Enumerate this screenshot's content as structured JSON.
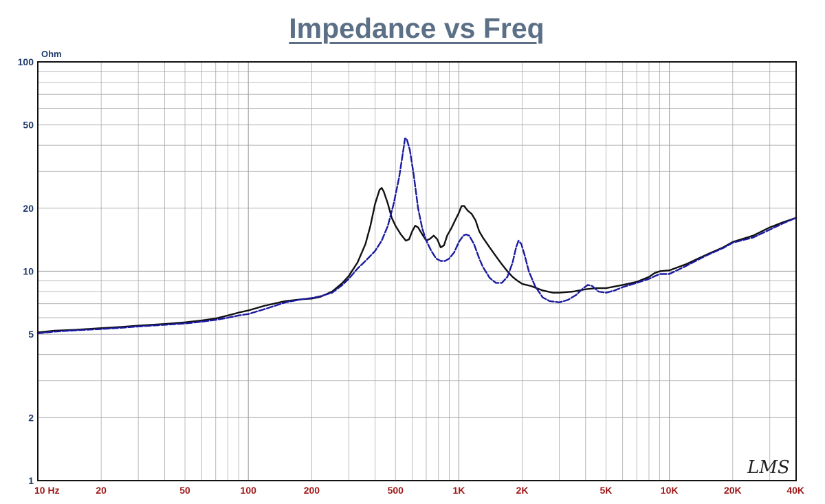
{
  "chart_data": {
    "type": "line",
    "title": "Impedance vs Freq",
    "ylabel": "Ohm",
    "xlabel": "",
    "x_scale": "log",
    "y_scale": "log",
    "xlim": [
      10,
      40000
    ],
    "ylim": [
      1,
      100
    ],
    "grid": true,
    "legend": "none",
    "x_ticks": [
      {
        "value": 10,
        "label": "10  Hz"
      },
      {
        "value": 20,
        "label": "20"
      },
      {
        "value": 50,
        "label": "50"
      },
      {
        "value": 100,
        "label": "100"
      },
      {
        "value": 200,
        "label": "200"
      },
      {
        "value": 500,
        "label": "500"
      },
      {
        "value": 1000,
        "label": "1K"
      },
      {
        "value": 2000,
        "label": "2K"
      },
      {
        "value": 5000,
        "label": "5K"
      },
      {
        "value": 10000,
        "label": "10K"
      },
      {
        "value": 20000,
        "label": "20K"
      },
      {
        "value": 40000,
        "label": "40K"
      }
    ],
    "y_ticks": [
      {
        "value": 1,
        "label": "1"
      },
      {
        "value": 2,
        "label": "2"
      },
      {
        "value": 5,
        "label": "5"
      },
      {
        "value": 10,
        "label": "10"
      },
      {
        "value": 20,
        "label": "20"
      },
      {
        "value": 50,
        "label": "50"
      },
      {
        "value": 100,
        "label": "100"
      }
    ],
    "series": [
      {
        "color": "#111111",
        "style": "solid",
        "points": [
          [
            10,
            5.1
          ],
          [
            12,
            5.2
          ],
          [
            15,
            5.25
          ],
          [
            20,
            5.35
          ],
          [
            25,
            5.42
          ],
          [
            30,
            5.5
          ],
          [
            40,
            5.6
          ],
          [
            50,
            5.7
          ],
          [
            60,
            5.82
          ],
          [
            70,
            5.95
          ],
          [
            80,
            6.15
          ],
          [
            90,
            6.35
          ],
          [
            100,
            6.5
          ],
          [
            120,
            6.85
          ],
          [
            150,
            7.2
          ],
          [
            180,
            7.35
          ],
          [
            200,
            7.4
          ],
          [
            220,
            7.55
          ],
          [
            250,
            8.0
          ],
          [
            280,
            8.8
          ],
          [
            300,
            9.5
          ],
          [
            330,
            11.0
          ],
          [
            360,
            13.5
          ],
          [
            380,
            16.5
          ],
          [
            400,
            21
          ],
          [
            420,
            24.5
          ],
          [
            430,
            25.0
          ],
          [
            440,
            24
          ],
          [
            460,
            21
          ],
          [
            480,
            18
          ],
          [
            500,
            16.5
          ],
          [
            530,
            15
          ],
          [
            560,
            14
          ],
          [
            580,
            14.2
          ],
          [
            600,
            15.5
          ],
          [
            620,
            16.5
          ],
          [
            640,
            16.2
          ],
          [
            670,
            15
          ],
          [
            700,
            14
          ],
          [
            730,
            14.3
          ],
          [
            760,
            14.8
          ],
          [
            790,
            14.2
          ],
          [
            820,
            13
          ],
          [
            850,
            13.3
          ],
          [
            880,
            14.8
          ],
          [
            920,
            16
          ],
          [
            960,
            17.5
          ],
          [
            1000,
            19
          ],
          [
            1030,
            20.5
          ],
          [
            1060,
            20.5
          ],
          [
            1100,
            19.5
          ],
          [
            1150,
            18.8
          ],
          [
            1200,
            17.5
          ],
          [
            1250,
            15.5
          ],
          [
            1300,
            14.5
          ],
          [
            1400,
            13.0
          ],
          [
            1500,
            11.8
          ],
          [
            1600,
            10.8
          ],
          [
            1700,
            10.0
          ],
          [
            1800,
            9.4
          ],
          [
            1900,
            9.0
          ],
          [
            2000,
            8.7
          ],
          [
            2200,
            8.5
          ],
          [
            2500,
            8.1
          ],
          [
            2800,
            7.9
          ],
          [
            3000,
            7.9
          ],
          [
            3500,
            8.0
          ],
          [
            4000,
            8.2
          ],
          [
            4500,
            8.3
          ],
          [
            5000,
            8.3
          ],
          [
            6000,
            8.6
          ],
          [
            7000,
            8.9
          ],
          [
            8000,
            9.4
          ],
          [
            8500,
            9.8
          ],
          [
            9000,
            10.0
          ],
          [
            10000,
            10.1
          ],
          [
            12000,
            10.8
          ],
          [
            15000,
            12.0
          ],
          [
            18000,
            13.0
          ],
          [
            20000,
            13.8
          ],
          [
            25000,
            14.8
          ],
          [
            30000,
            16.2
          ],
          [
            35000,
            17.2
          ],
          [
            40000,
            18.0
          ]
        ]
      },
      {
        "color": "#1a1aa0",
        "style": "dashed",
        "points": [
          [
            10,
            5.05
          ],
          [
            12,
            5.15
          ],
          [
            15,
            5.22
          ],
          [
            20,
            5.3
          ],
          [
            25,
            5.37
          ],
          [
            30,
            5.45
          ],
          [
            40,
            5.55
          ],
          [
            50,
            5.63
          ],
          [
            60,
            5.74
          ],
          [
            70,
            5.86
          ],
          [
            80,
            6.0
          ],
          [
            90,
            6.15
          ],
          [
            100,
            6.25
          ],
          [
            120,
            6.6
          ],
          [
            150,
            7.1
          ],
          [
            180,
            7.35
          ],
          [
            200,
            7.45
          ],
          [
            220,
            7.6
          ],
          [
            250,
            7.9
          ],
          [
            280,
            8.6
          ],
          [
            300,
            9.2
          ],
          [
            330,
            10.3
          ],
          [
            360,
            11.2
          ],
          [
            400,
            12.5
          ],
          [
            430,
            14.0
          ],
          [
            460,
            16.5
          ],
          [
            490,
            21
          ],
          [
            520,
            28
          ],
          [
            545,
            38
          ],
          [
            555,
            43
          ],
          [
            565,
            43
          ],
          [
            585,
            38
          ],
          [
            610,
            29
          ],
          [
            640,
            20
          ],
          [
            670,
            16
          ],
          [
            700,
            14
          ],
          [
            740,
            12.5
          ],
          [
            780,
            11.5
          ],
          [
            820,
            11.2
          ],
          [
            860,
            11.2
          ],
          [
            900,
            11.5
          ],
          [
            950,
            12.3
          ],
          [
            1000,
            13.8
          ],
          [
            1050,
            14.8
          ],
          [
            1080,
            15.0
          ],
          [
            1120,
            14.8
          ],
          [
            1180,
            13.5
          ],
          [
            1250,
            11.5
          ],
          [
            1300,
            10.5
          ],
          [
            1400,
            9.3
          ],
          [
            1500,
            8.8
          ],
          [
            1600,
            8.8
          ],
          [
            1700,
            9.4
          ],
          [
            1800,
            11.0
          ],
          [
            1870,
            13.0
          ],
          [
            1920,
            14.0
          ],
          [
            1980,
            13.5
          ],
          [
            2050,
            12.0
          ],
          [
            2150,
            10.0
          ],
          [
            2300,
            8.5
          ],
          [
            2500,
            7.5
          ],
          [
            2700,
            7.2
          ],
          [
            3000,
            7.1
          ],
          [
            3300,
            7.3
          ],
          [
            3600,
            7.7
          ],
          [
            3900,
            8.3
          ],
          [
            4100,
            8.6
          ],
          [
            4300,
            8.5
          ],
          [
            4600,
            8.0
          ],
          [
            5000,
            7.9
          ],
          [
            5500,
            8.1
          ],
          [
            6000,
            8.4
          ],
          [
            7000,
            8.8
          ],
          [
            8000,
            9.2
          ],
          [
            9000,
            9.7
          ],
          [
            10000,
            9.7
          ],
          [
            12000,
            10.6
          ],
          [
            15000,
            11.9
          ],
          [
            18000,
            12.9
          ],
          [
            20000,
            13.7
          ],
          [
            25000,
            14.5
          ],
          [
            30000,
            15.8
          ],
          [
            35000,
            17.0
          ],
          [
            40000,
            18.0
          ]
        ]
      }
    ],
    "watermark": "LMS",
    "colors": {
      "title": "#5b6f86",
      "ylabel": "#1f3a6b",
      "y_tick_labels": "#1f3a6b",
      "x_tick_labels": "#a01818",
      "grid": "#a9a9a9",
      "frame": "#111111",
      "watermark": "#222222"
    }
  }
}
